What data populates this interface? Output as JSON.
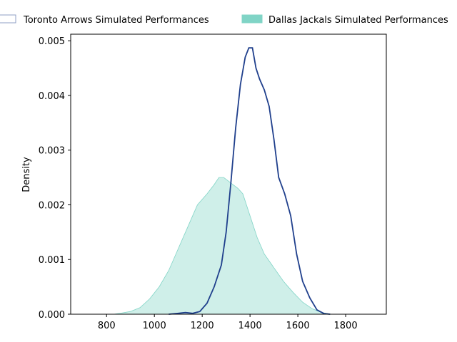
{
  "chart_data": {
    "type": "area",
    "title": "",
    "xlabel": "",
    "ylabel": "Density",
    "xlim": [
      650,
      1970
    ],
    "ylim": [
      0,
      0.00512
    ],
    "xticks": [
      800,
      1000,
      1200,
      1400,
      1600,
      1800
    ],
    "yticks": [
      0.0,
      0.001,
      0.002,
      0.003,
      0.004,
      0.005
    ],
    "xtick_labels": [
      "800",
      "1000",
      "1200",
      "1400",
      "1600",
      "1800"
    ],
    "ytick_labels": [
      "0.000",
      "0.001",
      "0.002",
      "0.003",
      "0.004",
      "0.005"
    ],
    "grid": false,
    "legend_position": "top",
    "series": [
      {
        "name": "Toronto Arrows Simulated Performances",
        "style": "line",
        "color": "#1f3f8c",
        "points": [
          [
            1060,
            0
          ],
          [
            1100,
            1.5e-05
          ],
          [
            1130,
            3e-05
          ],
          [
            1160,
            1.5e-05
          ],
          [
            1190,
            5e-05
          ],
          [
            1220,
            0.0002
          ],
          [
            1250,
            0.0005
          ],
          [
            1280,
            0.0009
          ],
          [
            1300,
            0.0015
          ],
          [
            1320,
            0.0024
          ],
          [
            1340,
            0.0034
          ],
          [
            1360,
            0.0042
          ],
          [
            1380,
            0.0047
          ],
          [
            1395,
            0.00487
          ],
          [
            1410,
            0.00487
          ],
          [
            1425,
            0.0045
          ],
          [
            1440,
            0.0043
          ],
          [
            1460,
            0.0041
          ],
          [
            1480,
            0.0038
          ],
          [
            1500,
            0.0032
          ],
          [
            1520,
            0.0025
          ],
          [
            1545,
            0.0022
          ],
          [
            1570,
            0.0018
          ],
          [
            1595,
            0.0011
          ],
          [
            1620,
            0.0006
          ],
          [
            1650,
            0.0003
          ],
          [
            1680,
            8e-05
          ],
          [
            1710,
            1e-05
          ],
          [
            1735,
            0
          ]
        ]
      },
      {
        "name": "Dallas Jackals Simulated Performances",
        "style": "fill",
        "color": "#80d4c6",
        "points": [
          [
            830,
            0
          ],
          [
            860,
            2e-05
          ],
          [
            900,
            5e-05
          ],
          [
            940,
            0.00012
          ],
          [
            980,
            0.00028
          ],
          [
            1020,
            0.0005
          ],
          [
            1060,
            0.0008
          ],
          [
            1100,
            0.0012
          ],
          [
            1140,
            0.0016
          ],
          [
            1180,
            0.002
          ],
          [
            1220,
            0.0022
          ],
          [
            1250,
            0.00237
          ],
          [
            1270,
            0.0025
          ],
          [
            1290,
            0.0025
          ],
          [
            1320,
            0.0024
          ],
          [
            1350,
            0.0023
          ],
          [
            1370,
            0.0022
          ],
          [
            1400,
            0.0018
          ],
          [
            1430,
            0.0014
          ],
          [
            1460,
            0.0011
          ],
          [
            1500,
            0.00085
          ],
          [
            1540,
            0.0006
          ],
          [
            1580,
            0.0004
          ],
          [
            1620,
            0.00022
          ],
          [
            1660,
            0.0001
          ],
          [
            1700,
            3e-05
          ],
          [
            1740,
            0
          ]
        ]
      }
    ]
  }
}
